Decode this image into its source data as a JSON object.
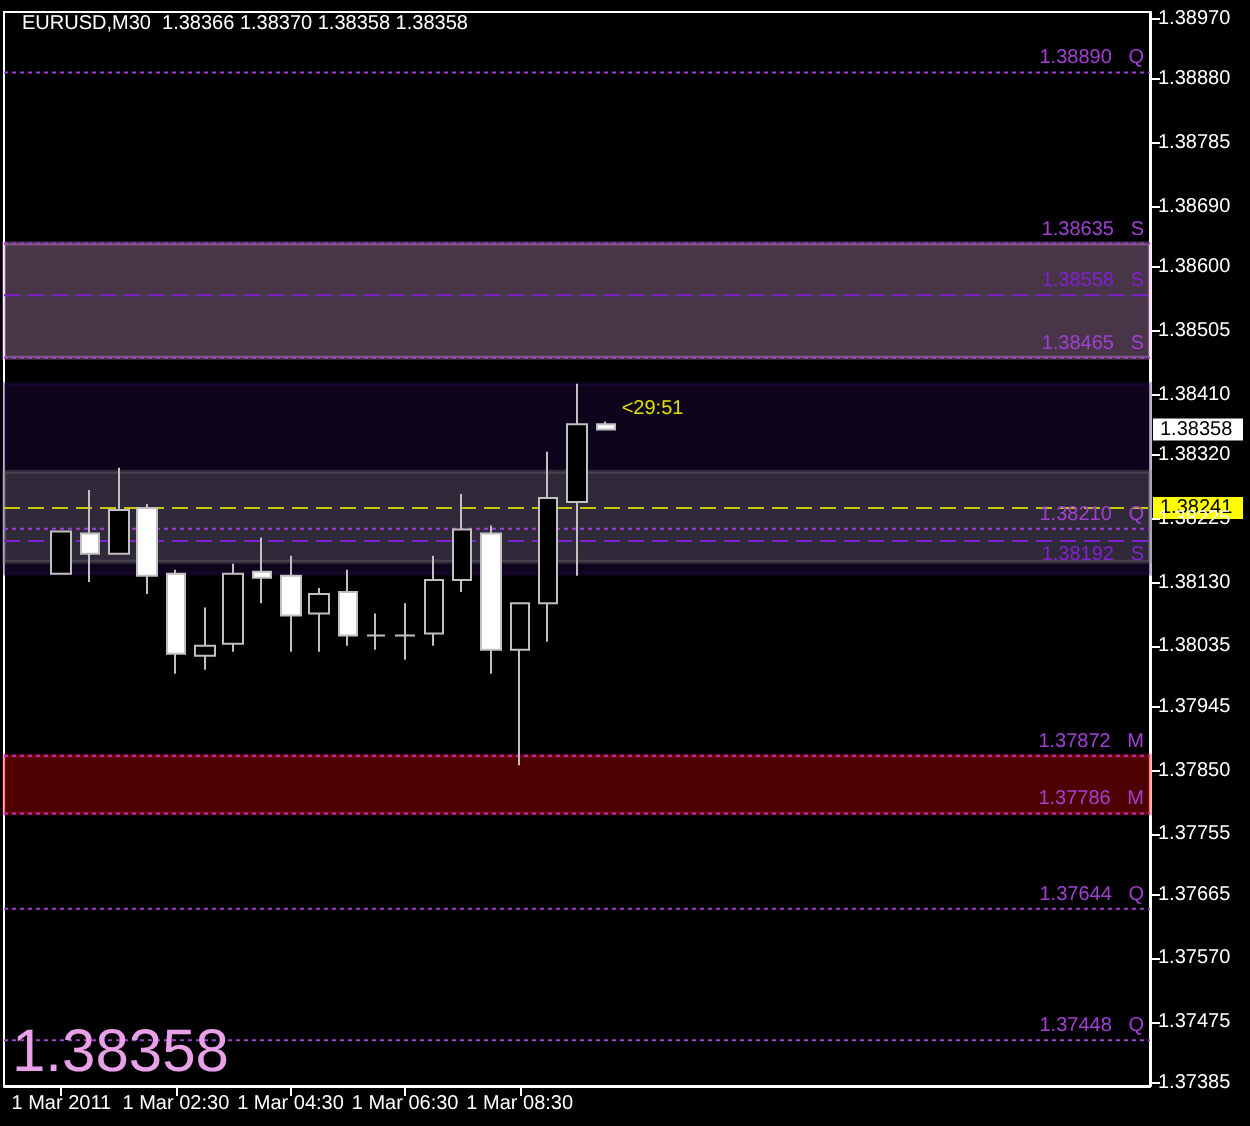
{
  "chart_data": {
    "type": "candlestick",
    "title": "EURUSD,M30  1.38366 1.38370 1.38358 1.38358",
    "x": [
      "2011-03-01T00:30",
      "2011-03-01T01:00",
      "2011-03-01T01:30",
      "2011-03-01T02:00",
      "2011-03-01T02:30",
      "2011-03-01T03:00",
      "2011-03-01T03:30",
      "2011-03-01T04:00",
      "2011-03-01T04:30",
      "2011-03-01T05:00",
      "2011-03-01T05:30",
      "2011-03-01T06:00",
      "2011-03-01T06:30",
      "2011-03-01T07:00",
      "2011-03-01T07:30",
      "2011-03-01T08:00",
      "2011-03-01T08:30",
      "2011-03-01T09:00",
      "2011-03-01T09:30",
      "2011-03-01T10:00"
    ],
    "ohlc": [
      [
        1.38143,
        1.38206,
        1.38143,
        1.38206
      ],
      [
        1.38203,
        1.38268,
        1.38131,
        1.38173
      ],
      [
        1.38173,
        1.38301,
        1.38173,
        1.38238
      ],
      [
        1.38241,
        1.38247,
        1.38113,
        1.3814
      ],
      [
        1.38143,
        1.38149,
        1.37994,
        1.38024
      ],
      [
        1.38021,
        1.38093,
        1.38,
        1.38036
      ],
      [
        1.38039,
        1.38158,
        1.38027,
        1.38143
      ],
      [
        1.38146,
        1.38197,
        1.38099,
        1.38137
      ],
      [
        1.3814,
        1.3817,
        1.38027,
        1.38081
      ],
      [
        1.38084,
        1.38122,
        1.38027,
        1.38113
      ],
      [
        1.38116,
        1.38149,
        1.38036,
        1.38051
      ],
      [
        1.38051,
        1.38084,
        1.3803,
        1.38051
      ],
      [
        1.38051,
        1.38099,
        1.38015,
        1.38051
      ],
      [
        1.38054,
        1.3817,
        1.38036,
        1.38134
      ],
      [
        1.38134,
        1.38262,
        1.38116,
        1.38209
      ],
      [
        1.38203,
        1.38215,
        1.37994,
        1.3803
      ],
      [
        1.3803,
        1.38099,
        1.37858,
        1.38099
      ],
      [
        1.38099,
        1.38325,
        1.38042,
        1.38256
      ],
      [
        1.3825,
        1.38426,
        1.3814,
        1.38366
      ],
      [
        1.38366,
        1.3837,
        1.38358,
        1.38358
      ]
    ],
    "colors": [
      "#000000",
      "#ffffff",
      "#000000",
      "#ffffff",
      "#ffffff",
      "#000000",
      "#000000",
      "#ffffff",
      "#ffffff",
      "#000000",
      "#ffffff",
      "#c0c0c0",
      "#c0c0c0",
      "#000000",
      "#000000",
      "#ffffff",
      "#000000",
      "#000000",
      "#000000",
      "#ffffff"
    ],
    "xlim": [
      "2011-02-28T23:30",
      "2011-03-01T19:30"
    ],
    "xticks": [
      {
        "value": "2011-03-01T00:30",
        "label": "1 Mar 2011"
      },
      {
        "value": "2011-03-01T02:30",
        "label": "1 Mar 02:30"
      },
      {
        "value": "2011-03-01T04:30",
        "label": "1 Mar 04:30"
      },
      {
        "value": "2011-03-01T06:30",
        "label": "1 Mar 06:30"
      },
      {
        "value": "2011-03-01T08:30",
        "label": "1 Mar 08:30"
      }
    ],
    "ylim": [
      1.3738,
      1.3898
    ],
    "yticks": [
      {
        "value": 1.3897,
        "label": "1.38970"
      },
      {
        "value": 1.3888,
        "label": "1.38880"
      },
      {
        "value": 1.38785,
        "label": "1.38785"
      },
      {
        "value": 1.3869,
        "label": "1.38690"
      },
      {
        "value": 1.386,
        "label": "1.38600"
      },
      {
        "value": 1.38505,
        "label": "1.38505"
      },
      {
        "value": 1.3841,
        "label": "1.38410"
      },
      {
        "value": 1.3832,
        "label": "1.38320"
      },
      {
        "value": 1.38225,
        "label": "1.38225"
      },
      {
        "value": 1.3813,
        "label": "1.38130"
      },
      {
        "value": 1.38035,
        "label": "1.38035"
      },
      {
        "value": 1.37945,
        "label": "1.37945"
      },
      {
        "value": 1.3785,
        "label": "1.37850"
      },
      {
        "value": 1.37755,
        "label": "1.37755"
      },
      {
        "value": 1.37665,
        "label": "1.37665"
      },
      {
        "value": 1.3757,
        "label": "1.37570"
      },
      {
        "value": 1.37475,
        "label": "1.37475"
      },
      {
        "value": 1.37385,
        "label": "1.37385"
      }
    ],
    "ref_lines": [
      {
        "axis": "y",
        "value": 1.3889,
        "label": "1.38890   Q",
        "color": "#a040d0",
        "line_style": "dotted"
      },
      {
        "axis": "y",
        "value": 1.38635,
        "label": "1.38635   S",
        "color": "#a040d0",
        "line_style": "dotted"
      },
      {
        "axis": "y",
        "value": 1.38558,
        "label": "1.38558   S",
        "color": "#8020d0",
        "line_style": "dashed"
      },
      {
        "axis": "y",
        "value": 1.38465,
        "label": "1.38465   S",
        "color": "#a040d0",
        "line_style": "dotted"
      },
      {
        "axis": "y",
        "value": 1.38241,
        "color": "#c8c800",
        "line_style": "dashed"
      },
      {
        "axis": "y",
        "value": 1.3821,
        "label": "1.38210   Q",
        "color": "#a040d0",
        "line_style": "dotted"
      },
      {
        "axis": "y",
        "value": 1.38192,
        "label": "1.38192   S",
        "color": "#8020d0",
        "line_style": "dashed"
      },
      {
        "axis": "y",
        "value": 1.37872,
        "label": "1.37872   M",
        "color": "#a040d0",
        "line_style": "dotted"
      },
      {
        "axis": "y",
        "value": 1.37786,
        "label": "1.37786   M",
        "color": "#a040d0",
        "line_style": "dotted"
      },
      {
        "axis": "y",
        "value": 1.37644,
        "label": "1.37644   Q",
        "color": "#a040d0",
        "line_style": "dotted"
      },
      {
        "axis": "y",
        "value": 1.37448,
        "label": "1.37448   Q",
        "color": "#a040d0",
        "line_style": "dotted"
      }
    ],
    "bands": [
      {
        "axis": "y",
        "from": 1.38143,
        "to": 1.38426,
        "color": "#2e0c5c"
      },
      {
        "axis": "y",
        "from": 1.38465,
        "to": 1.38635,
        "color": "#f0b0f0"
      },
      {
        "axis": "y",
        "from": 1.37786,
        "to": 1.37872,
        "color": "#ff0000"
      },
      {
        "axis": "y",
        "from": 1.38161,
        "to": 1.38295,
        "color": "#808080"
      }
    ],
    "annotations": [
      "<29:51",
      "1.38358",
      "1.38241",
      "1.38358"
    ]
  }
}
